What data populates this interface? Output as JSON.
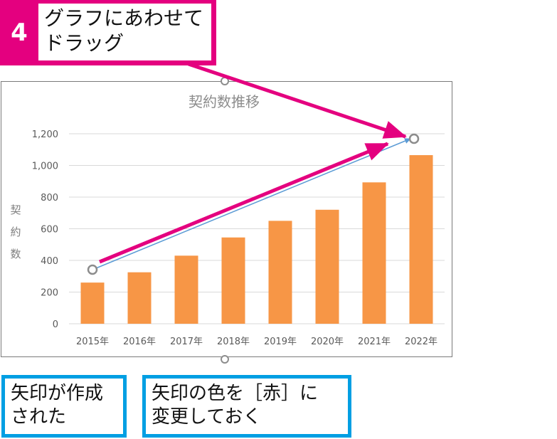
{
  "step": {
    "number": "4",
    "instruction_line1": "グラフにあわせて",
    "instruction_line2": "ドラッグ"
  },
  "callouts": {
    "arrow_created_line1": "矢印が作成",
    "arrow_created_line2": "された",
    "change_color_line1": "矢印の色を［赤］に",
    "change_color_line2": "変更しておく"
  },
  "colors": {
    "step_accent": "#e4007f",
    "callout_border": "#009fe3",
    "bar_fill": "#f79646",
    "drawn_arrow": "#5b9bd5",
    "red_arrow": "#e4007f"
  },
  "chart_data": {
    "type": "bar",
    "title": "契約数推移",
    "ylabel": "契約数",
    "xlabel": "",
    "categories": [
      "2015年",
      "2016年",
      "2017年",
      "2018年",
      "2019年",
      "2020年",
      "2021年",
      "2022年"
    ],
    "values": [
      260,
      325,
      430,
      545,
      650,
      720,
      893,
      1065
    ],
    "ylim": [
      0,
      1200
    ],
    "yticks": [
      "0",
      "200",
      "400",
      "600",
      "800",
      "1,000",
      "1,200"
    ],
    "ytick_values": [
      0,
      200,
      400,
      600,
      800,
      1000,
      1200
    ],
    "grid": true,
    "legend": "none"
  }
}
